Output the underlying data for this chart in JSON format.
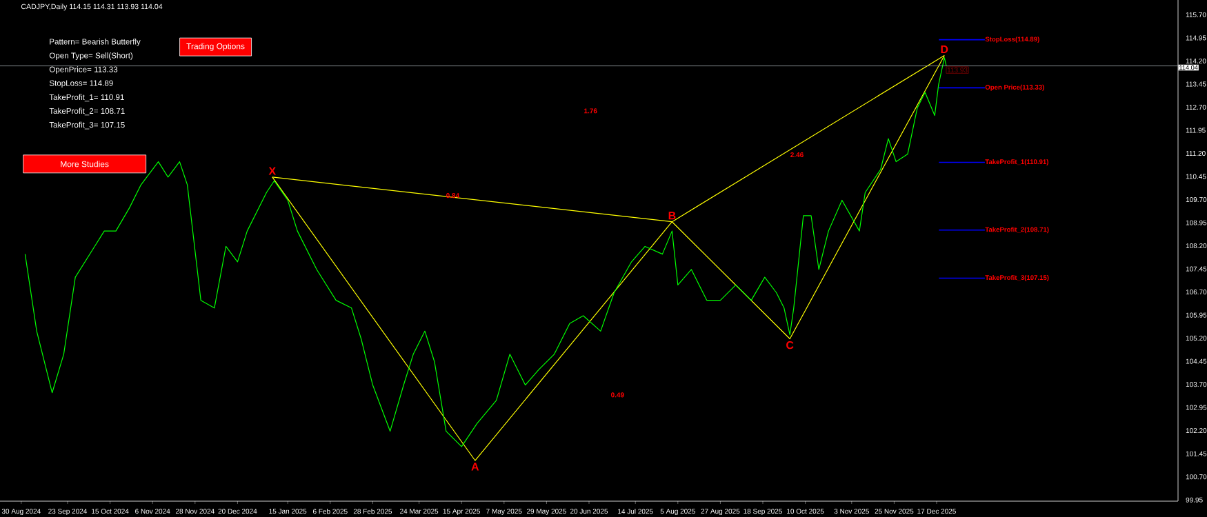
{
  "chart_data": {
    "type": "line",
    "title": "CADJPY,Daily  114.15 114.31 113.93 114.04",
    "annotations": [
      "Pattern= Bearish Butterfly",
      "Open Type= Sell(Short)",
      "OpenPrice= 113.33",
      "StopLoss= 114.89",
      "TakeProfit_1= 110.91",
      "TakeProfit_2= 108.71",
      "TakeProfit_3= 107.15",
      "Trading Options",
      "More Studies",
      "113.93",
      "0.84",
      "1.76",
      "2.46",
      "0.49",
      {
        "text": "X",
        "x": "2025-01-07",
        "y": 110.43
      },
      {
        "text": "A",
        "x": "2025-04-22",
        "y": 101.23
      },
      {
        "text": "B",
        "x": "2025-08-02",
        "y": 108.98
      },
      {
        "text": "C",
        "x": "2025-10-02",
        "y": 105.18
      },
      {
        "text": "D",
        "x": "2025-12-21",
        "y": 114.38
      }
    ],
    "series": [
      {
        "color": "#ffff00",
        "x": [
          "2025-01-07",
          "2025-04-22",
          "2025-08-02",
          "2025-10-02",
          "2025-12-21"
        ],
        "values": [
          110.43,
          101.23,
          108.98,
          105.18,
          114.38
        ]
      },
      {
        "color": "#ffff00",
        "x": [
          "2025-01-07",
          "2025-08-02",
          "2025-12-21"
        ],
        "values": [
          110.43,
          108.98,
          114.38
        ]
      },
      {
        "color": "#00ff00",
        "x": [
          "2024-09-01",
          "2024-09-07",
          "2024-09-15",
          "2024-09-21",
          "2024-09-27",
          "2024-10-07",
          "2024-10-12",
          "2024-10-18",
          "2024-10-25",
          "2024-10-31",
          "2024-11-09",
          "2024-11-14",
          "2024-11-20",
          "2024-11-24",
          "2024-12-01",
          "2024-12-08",
          "2024-12-14",
          "2024-12-20",
          "2024-12-25",
          "2025-01-04",
          "2025-01-08",
          "2025-01-15",
          "2025-01-20",
          "2025-01-30",
          "2025-02-09",
          "2025-02-17",
          "2025-02-22",
          "2025-02-28",
          "2025-03-09",
          "2025-03-16",
          "2025-03-21",
          "2025-03-27",
          "2025-04-01",
          "2025-04-07",
          "2025-04-15",
          "2025-04-23",
          "2025-05-03",
          "2025-05-10",
          "2025-05-18",
          "2025-05-25",
          "2025-06-02",
          "2025-06-10",
          "2025-06-17",
          "2025-06-26",
          "2025-07-03",
          "2025-07-12",
          "2025-07-19",
          "2025-07-28",
          "2025-08-02",
          "2025-08-05",
          "2025-08-12",
          "2025-08-20",
          "2025-08-27",
          "2025-09-04",
          "2025-09-12",
          "2025-09-19",
          "2025-09-25",
          "2025-09-29",
          "2025-10-02",
          "2025-10-04",
          "2025-10-09",
          "2025-10-13",
          "2025-10-17",
          "2025-10-22",
          "2025-10-29",
          "2025-11-07",
          "2025-11-10",
          "2025-11-18",
          "2025-11-22",
          "2025-11-26",
          "2025-12-02",
          "2025-12-07",
          "2025-12-11",
          "2025-12-16",
          "2025-12-18",
          "2025-12-21",
          "2025-12-22"
        ],
        "values": [
          107.93,
          105.43,
          103.43,
          104.68,
          107.18,
          108.18,
          108.68,
          108.68,
          109.43,
          110.18,
          110.93,
          110.43,
          110.93,
          110.18,
          106.43,
          106.18,
          108.18,
          107.68,
          108.68,
          109.93,
          110.31,
          109.68,
          108.68,
          107.43,
          106.43,
          106.18,
          105.18,
          103.68,
          102.18,
          103.68,
          104.68,
          105.43,
          104.43,
          102.18,
          101.68,
          102.43,
          103.18,
          104.68,
          103.68,
          104.18,
          104.68,
          105.68,
          105.93,
          105.43,
          106.68,
          107.68,
          108.18,
          107.93,
          108.68,
          106.93,
          107.43,
          106.43,
          106.43,
          106.93,
          106.43,
          107.18,
          106.68,
          106.18,
          105.31,
          106.18,
          109.18,
          109.18,
          107.43,
          108.68,
          109.68,
          108.68,
          109.93,
          110.68,
          111.68,
          110.93,
          111.18,
          112.68,
          113.18,
          112.43,
          113.43,
          114.31,
          114.04
        ]
      }
    ],
    "ref_lines": [
      {
        "axis": "y",
        "value": 114.89,
        "label": "StopLoss(114.89)",
        "color": "#0000ff"
      },
      {
        "axis": "y",
        "value": 113.33,
        "label": "Open Price(113.33)",
        "color": "#0000ff"
      },
      {
        "axis": "y",
        "value": 110.91,
        "label": "TakeProfit_1(110.91)",
        "color": "#0000ff"
      },
      {
        "axis": "y",
        "value": 108.71,
        "label": "TakeProfit_2(108.71)",
        "color": "#0000ff"
      },
      {
        "axis": "y",
        "value": 107.15,
        "label": "TakeProfit_3(107.15)",
        "color": "#0000ff"
      },
      {
        "axis": "y",
        "value": 114.04,
        "label": "114.04",
        "color": "#a0a8b0"
      }
    ],
    "xlim": [
      "2024-08-19",
      "2026-04-21"
    ],
    "ylim": [
      99.91,
      116.18
    ],
    "xticks": [
      {
        "value": "2024-08-30",
        "label": "30 Aug 2024"
      },
      {
        "value": "2024-09-23",
        "label": "23 Sep 2024"
      },
      {
        "value": "2024-10-15",
        "label": "15 Oct 2024"
      },
      {
        "value": "2024-11-06",
        "label": "6 Nov 2024"
      },
      {
        "value": "2024-11-28",
        "label": "28 Nov 2024"
      },
      {
        "value": "2024-12-20",
        "label": "20 Dec 2024"
      },
      {
        "value": "2025-01-15",
        "label": "15 Jan 2025"
      },
      {
        "value": "2025-02-06",
        "label": "6 Feb 2025"
      },
      {
        "value": "2025-02-28",
        "label": "28 Feb 2025"
      },
      {
        "value": "2025-03-24",
        "label": "24 Mar 2025"
      },
      {
        "value": "2025-04-15",
        "label": "15 Apr 2025"
      },
      {
        "value": "2025-05-07",
        "label": "7 May 2025"
      },
      {
        "value": "2025-05-29",
        "label": "29 May 2025"
      },
      {
        "value": "2025-06-20",
        "label": "20 Jun 2025"
      },
      {
        "value": "2025-07-14",
        "label": "14 Jul 2025"
      },
      {
        "value": "2025-08-05",
        "label": "5 Aug 2025"
      },
      {
        "value": "2025-08-27",
        "label": "27 Aug 2025"
      },
      {
        "value": "2025-09-18",
        "label": "18 Sep 2025"
      },
      {
        "value": "2025-10-10",
        "label": "10 Oct 2025"
      },
      {
        "value": "2025-11-03",
        "label": "3 Nov 2025"
      },
      {
        "value": "2025-11-25",
        "label": "25 Nov 2025"
      },
      {
        "value": "2025-12-17",
        "label": "17 Dec 2025"
      }
    ],
    "yticks": [
      {
        "value": 99.95,
        "label": "99.95"
      },
      {
        "value": 100.7,
        "label": "100.70"
      },
      {
        "value": 101.45,
        "label": "101.45"
      },
      {
        "value": 102.2,
        "label": "102.20"
      },
      {
        "value": 102.95,
        "label": "102.95"
      },
      {
        "value": 103.7,
        "label": "103.70"
      },
      {
        "value": 104.45,
        "label": "104.45"
      },
      {
        "value": 105.2,
        "label": "105.20"
      },
      {
        "value": 105.95,
        "label": "105.95"
      },
      {
        "value": 106.7,
        "label": "106.70"
      },
      {
        "value": 107.45,
        "label": "107.45"
      },
      {
        "value": 108.2,
        "label": "108.20"
      },
      {
        "value": 108.95,
        "label": "108.95"
      },
      {
        "value": 109.7,
        "label": "109.70"
      },
      {
        "value": 110.45,
        "label": "110.45"
      },
      {
        "value": 111.2,
        "label": "111.20"
      },
      {
        "value": 111.95,
        "label": "111.95"
      },
      {
        "value": 112.7,
        "label": "112.70"
      },
      {
        "value": 113.45,
        "label": "113.45"
      },
      {
        "value": 114.2,
        "label": "114.20"
      },
      {
        "value": 114.95,
        "label": "114.95"
      },
      {
        "value": 115.7,
        "label": "115.70"
      }
    ],
    "grid": false,
    "marker": "none",
    "line_style": "solid"
  }
}
